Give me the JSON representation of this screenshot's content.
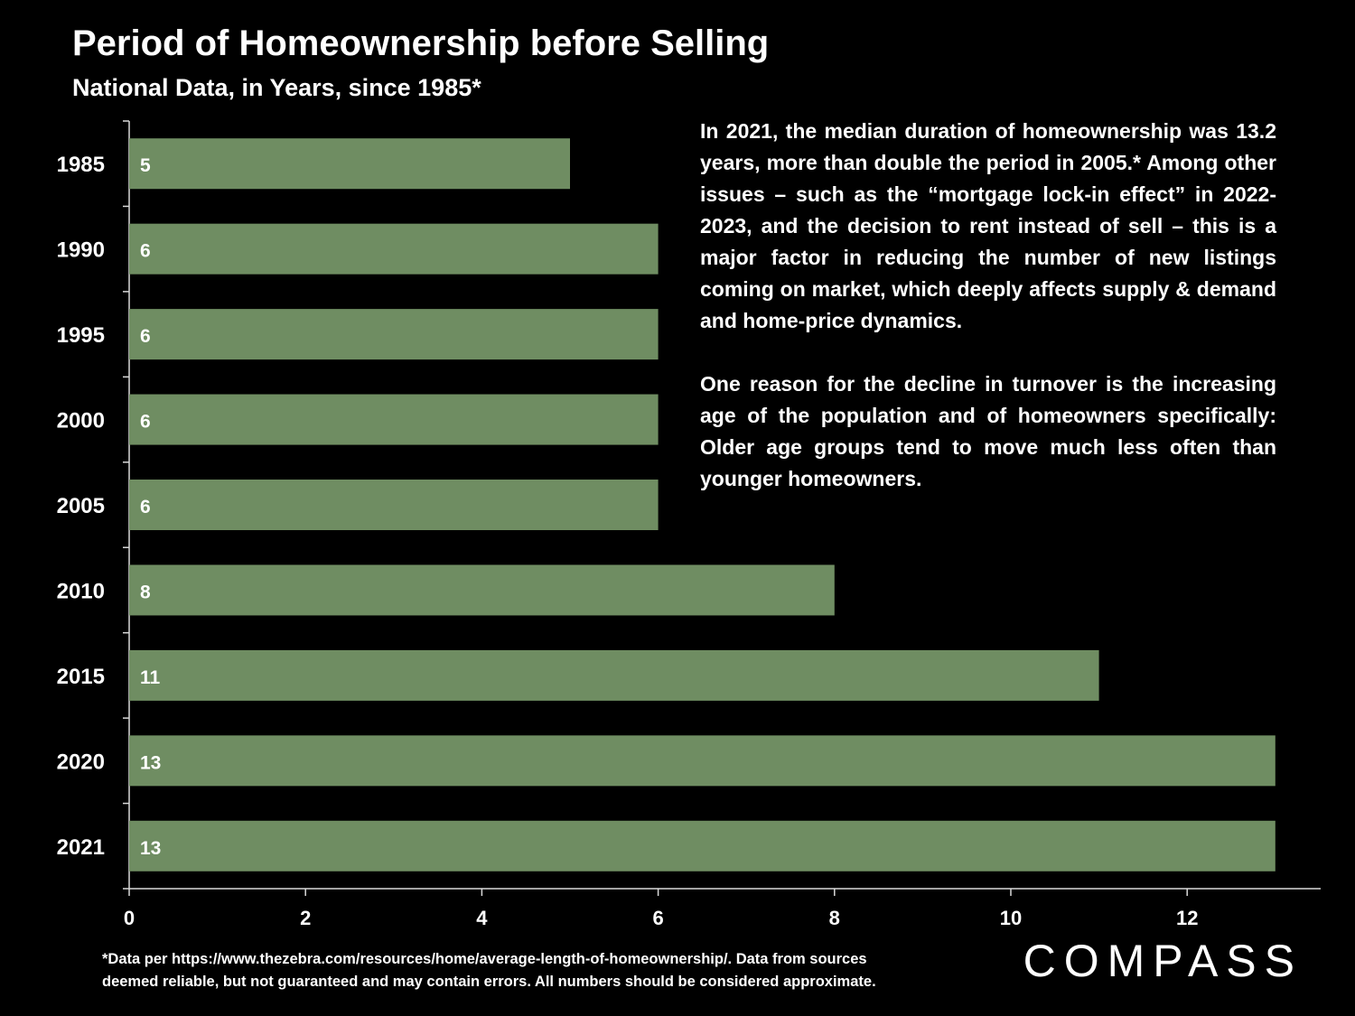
{
  "chart_data": {
    "type": "bar",
    "orientation": "horizontal",
    "title": "Period of Homeownership before Selling",
    "subtitle": "National Data, in Years, since 1985*",
    "categories": [
      "1985",
      "1990",
      "1995",
      "2000",
      "2005",
      "2010",
      "2015",
      "2020",
      "2021"
    ],
    "values": [
      5,
      6,
      6,
      6,
      6,
      8,
      11,
      13,
      13
    ],
    "data_labels": [
      "5",
      "6",
      "6",
      "6",
      "6",
      "8",
      "11",
      "13",
      "13"
    ],
    "x_ticks": [
      0,
      2,
      4,
      6,
      8,
      10,
      12
    ],
    "xlim": [
      0,
      13.5
    ],
    "xlabel": "",
    "ylabel": "",
    "grid": false,
    "bar_color": "#6f8d62"
  },
  "annotation": {
    "paragraphs": [
      "In 2021, the median duration of homeownership was 13.2 years, more than double the period in 2005.* Among other issues – such as the “mortgage lock-in effect” in 2022-2023, and the decision to rent instead of sell – this is a major factor in reducing the number of new listings coming on market, which deeply affects supply & demand and home-price dynamics.",
      "One reason for the decline in turnover is the increasing age of the population and of homeowners specifically:  Older age groups tend to move much less often than younger homeowners."
    ]
  },
  "footnote": {
    "line1": "*Data per https://www.thezebra.com/resources/home/average-length-of-homeownership/. Data from sources",
    "line2": "deemed reliable, but not guaranteed and may contain errors. All numbers should be considered approximate."
  },
  "brand": {
    "logo_text": "COMPASS",
    "logo_icon": "compass-o-icon"
  }
}
